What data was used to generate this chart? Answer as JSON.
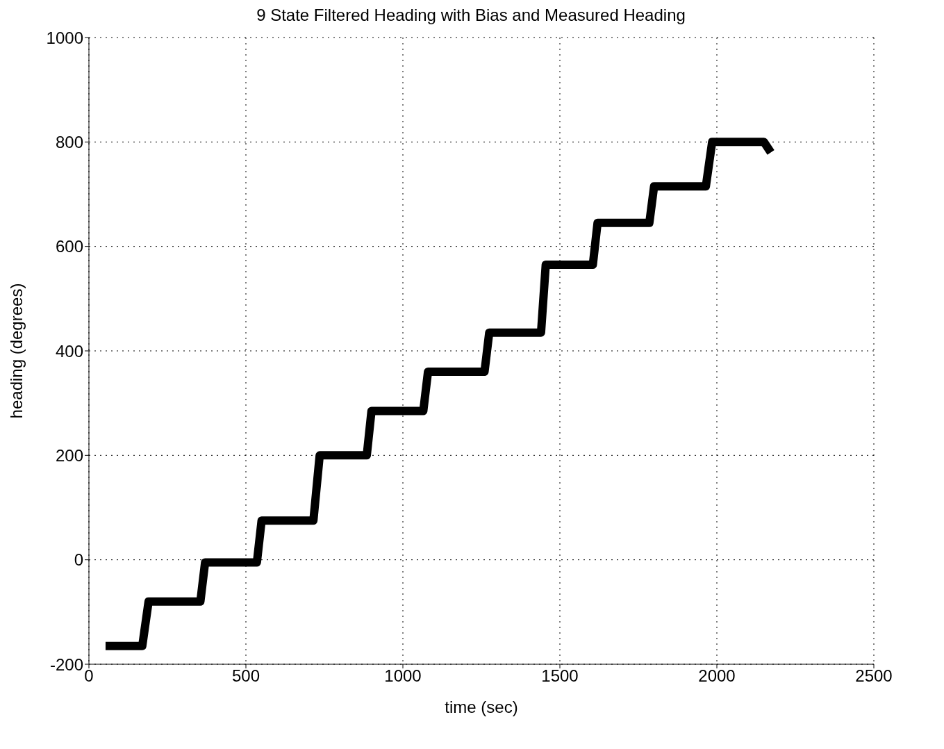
{
  "chart_data": {
    "type": "line",
    "title": "9 State Filtered Heading with Bias and Measured Heading",
    "xlabel": "time (sec)",
    "ylabel": "heading (degrees)",
    "series": [
      {
        "color": "#000000",
        "x": [
          53,
          170,
          190,
          355,
          370,
          535,
          550,
          715,
          735,
          885,
          900,
          1065,
          1080,
          1260,
          1275,
          1440,
          1455,
          1605,
          1620,
          1785,
          1800,
          1965,
          1985,
          2150,
          2172
        ],
        "values": [
          -165,
          -165,
          -80,
          -80,
          -5,
          -5,
          75,
          75,
          200,
          200,
          285,
          285,
          360,
          360,
          435,
          435,
          565,
          565,
          645,
          645,
          715,
          715,
          800,
          800,
          780
        ]
      }
    ],
    "xlim": [
      0,
      2500
    ],
    "xticks": [
      0,
      500,
      1000,
      1500,
      2000,
      2500
    ],
    "ylim": [
      -200,
      1000
    ],
    "yticks": [
      -200,
      0,
      200,
      400,
      600,
      800,
      1000
    ],
    "grid": true,
    "marker": "none",
    "line_style": "solid"
  }
}
